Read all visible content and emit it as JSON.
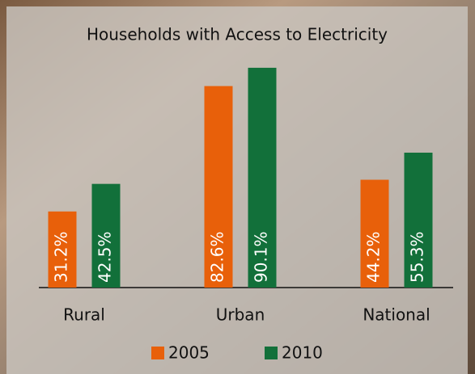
{
  "chart_data": {
    "type": "bar",
    "title": "Households with Access to Electricity",
    "categories": [
      "Rural",
      "Urban",
      "National"
    ],
    "series": [
      {
        "name": "2005",
        "color": "#e8600a",
        "values": [
          31.2,
          82.6,
          44.2
        ],
        "value_labels": [
          "31.2%",
          "82.6%",
          "44.2%"
        ]
      },
      {
        "name": "2010",
        "color": "#12703a",
        "values": [
          42.5,
          90.1,
          55.3
        ],
        "value_labels": [
          "42.5%",
          "90.1%",
          "55.3%"
        ]
      }
    ]
  }
}
